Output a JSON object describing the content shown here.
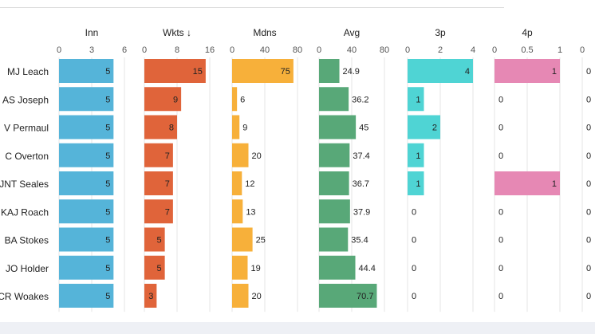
{
  "header": {
    "partial_title": "…"
  },
  "chart_data": {
    "type": "bar",
    "categories": [
      "MJ Leach",
      "AS Joseph",
      "V Permaul",
      "C Overton",
      "JNT Seales",
      "KAJ Roach",
      "BA Stokes",
      "JO Holder",
      "CR Woakes"
    ],
    "columns": [
      {
        "name": "Inn",
        "ticks": [
          0,
          3,
          6
        ],
        "xlim": [
          0,
          6
        ],
        "color": "#55b4d9",
        "label_inside": true,
        "values": [
          5,
          5,
          5,
          5,
          5,
          5,
          5,
          5,
          5
        ]
      },
      {
        "name": "Wkts ↓",
        "ticks": [
          0,
          8,
          16
        ],
        "xlim": [
          0,
          16
        ],
        "color": "#e0643a",
        "label_inside": true,
        "values": [
          15,
          9,
          8,
          7,
          7,
          7,
          5,
          5,
          3
        ]
      },
      {
        "name": "Mdns",
        "ticks": [
          0,
          40,
          80
        ],
        "xlim": [
          0,
          80
        ],
        "color": "#f7b03a",
        "label_inside": false,
        "values": [
          75,
          6,
          9,
          20,
          12,
          13,
          25,
          19,
          20
        ]
      },
      {
        "name": "Avg",
        "ticks": [
          0,
          40,
          80
        ],
        "xlim": [
          0,
          80
        ],
        "color": "#58a878",
        "label_inside": false,
        "values": [
          24.9,
          36.2,
          45,
          37.4,
          36.7,
          37.9,
          35.4,
          44.4,
          70.7
        ]
      },
      {
        "name": "3p",
        "ticks": [
          0,
          2,
          4
        ],
        "xlim": [
          0,
          4
        ],
        "color": "#4fd4d4",
        "label_inside": true,
        "values": [
          4,
          1,
          2,
          1,
          1,
          0,
          0,
          0,
          0
        ]
      },
      {
        "name": "4p",
        "ticks": [
          0,
          0.5,
          1
        ],
        "xlim": [
          0,
          1
        ],
        "color": "#e688b4",
        "label_inside": true,
        "values": [
          1,
          0,
          0,
          0,
          1,
          0,
          0,
          0,
          0
        ]
      },
      {
        "name": "",
        "ticks": [
          0
        ],
        "xlim": [
          0,
          1
        ],
        "color": "#999999",
        "label_inside": false,
        "values": [
          0,
          0,
          0,
          0,
          0,
          0,
          0,
          0,
          0
        ]
      }
    ]
  }
}
